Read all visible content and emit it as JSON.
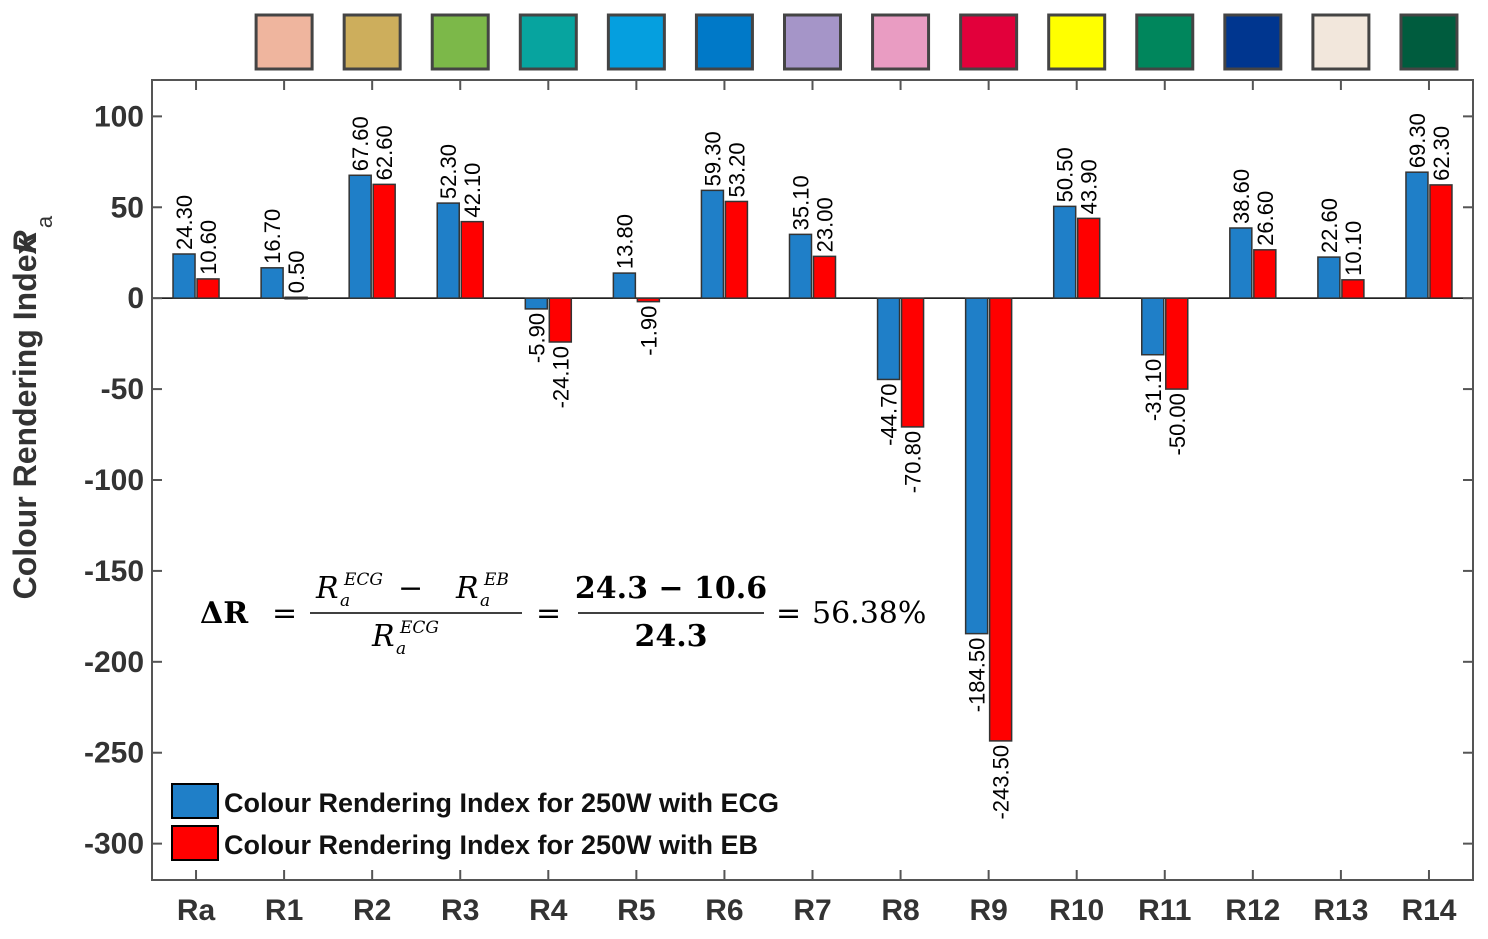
{
  "chart_data": {
    "type": "bar",
    "title": "",
    "xlabel": "",
    "ylabel": "Colour Rendering Index",
    "ylabel_symbol": "R",
    "ylabel_subscript": "a",
    "ylim": [
      -320,
      120
    ],
    "yticks": [
      100,
      50,
      0,
      -50,
      -100,
      -150,
      -200,
      -250,
      -300
    ],
    "ytick_labels": [
      "100",
      "50",
      "0",
      "-50",
      "-100",
      "-150",
      "-200",
      "-250",
      "-300"
    ],
    "categories": [
      "Ra",
      "R1",
      "R2",
      "R3",
      "R4",
      "R5",
      "R6",
      "R7",
      "R8",
      "R9",
      "R10",
      "R11",
      "R12",
      "R13",
      "R14"
    ],
    "series": [
      {
        "name": "Colour Rendering Index for 250W with ECG",
        "color": "#1f7fc8",
        "values": [
          24.3,
          16.7,
          67.6,
          52.3,
          -5.9,
          13.8,
          59.3,
          35.1,
          -44.7,
          -184.5,
          50.5,
          -31.1,
          38.6,
          22.6,
          69.3
        ],
        "labels": [
          "24.30",
          "16.70",
          "67.60",
          "52.30",
          "-5.90",
          "13.80",
          "59.30",
          "35.10",
          "-44.70",
          "-184.50",
          "50.50",
          "-31.10",
          "38.60",
          "22.60",
          "69.30"
        ]
      },
      {
        "name": "Colour Rendering Index for 250W with EB",
        "color": "#ff0000",
        "values": [
          10.6,
          0.5,
          62.6,
          42.1,
          -24.1,
          -1.9,
          53.2,
          23.0,
          -70.8,
          -243.5,
          43.9,
          -50.0,
          26.6,
          10.1,
          62.3
        ],
        "labels": [
          "10.60",
          "0.50",
          "62.60",
          "42.10",
          "-24.10",
          "-1.90",
          "53.20",
          "23.00",
          "-70.80",
          "-243.50",
          "43.90",
          "-50.00",
          "26.60",
          "10.10",
          "62.30"
        ]
      }
    ],
    "legend_position": "bottom-left",
    "colour_swatches": [
      "#efb59e",
      "#cdae5c",
      "#7cb849",
      "#07a49f",
      "#059fdf",
      "#0079c8",
      "#a595c8",
      "#e99cc2",
      "#e2003b",
      "#ffff00",
      "#00865c",
      "#00368f",
      "#f2e7dc",
      "#005c3e"
    ],
    "formula": {
      "lhs": "ΔR",
      "symbol": "R",
      "subscript": "a",
      "sup_top": "ECG",
      "sup_minus": "EB",
      "sup_bottom": "ECG",
      "minus": "−",
      "equals": "=",
      "num_expr": "24.3 − 10.6",
      "den_expr": "24.3",
      "result": "56.38%"
    }
  }
}
